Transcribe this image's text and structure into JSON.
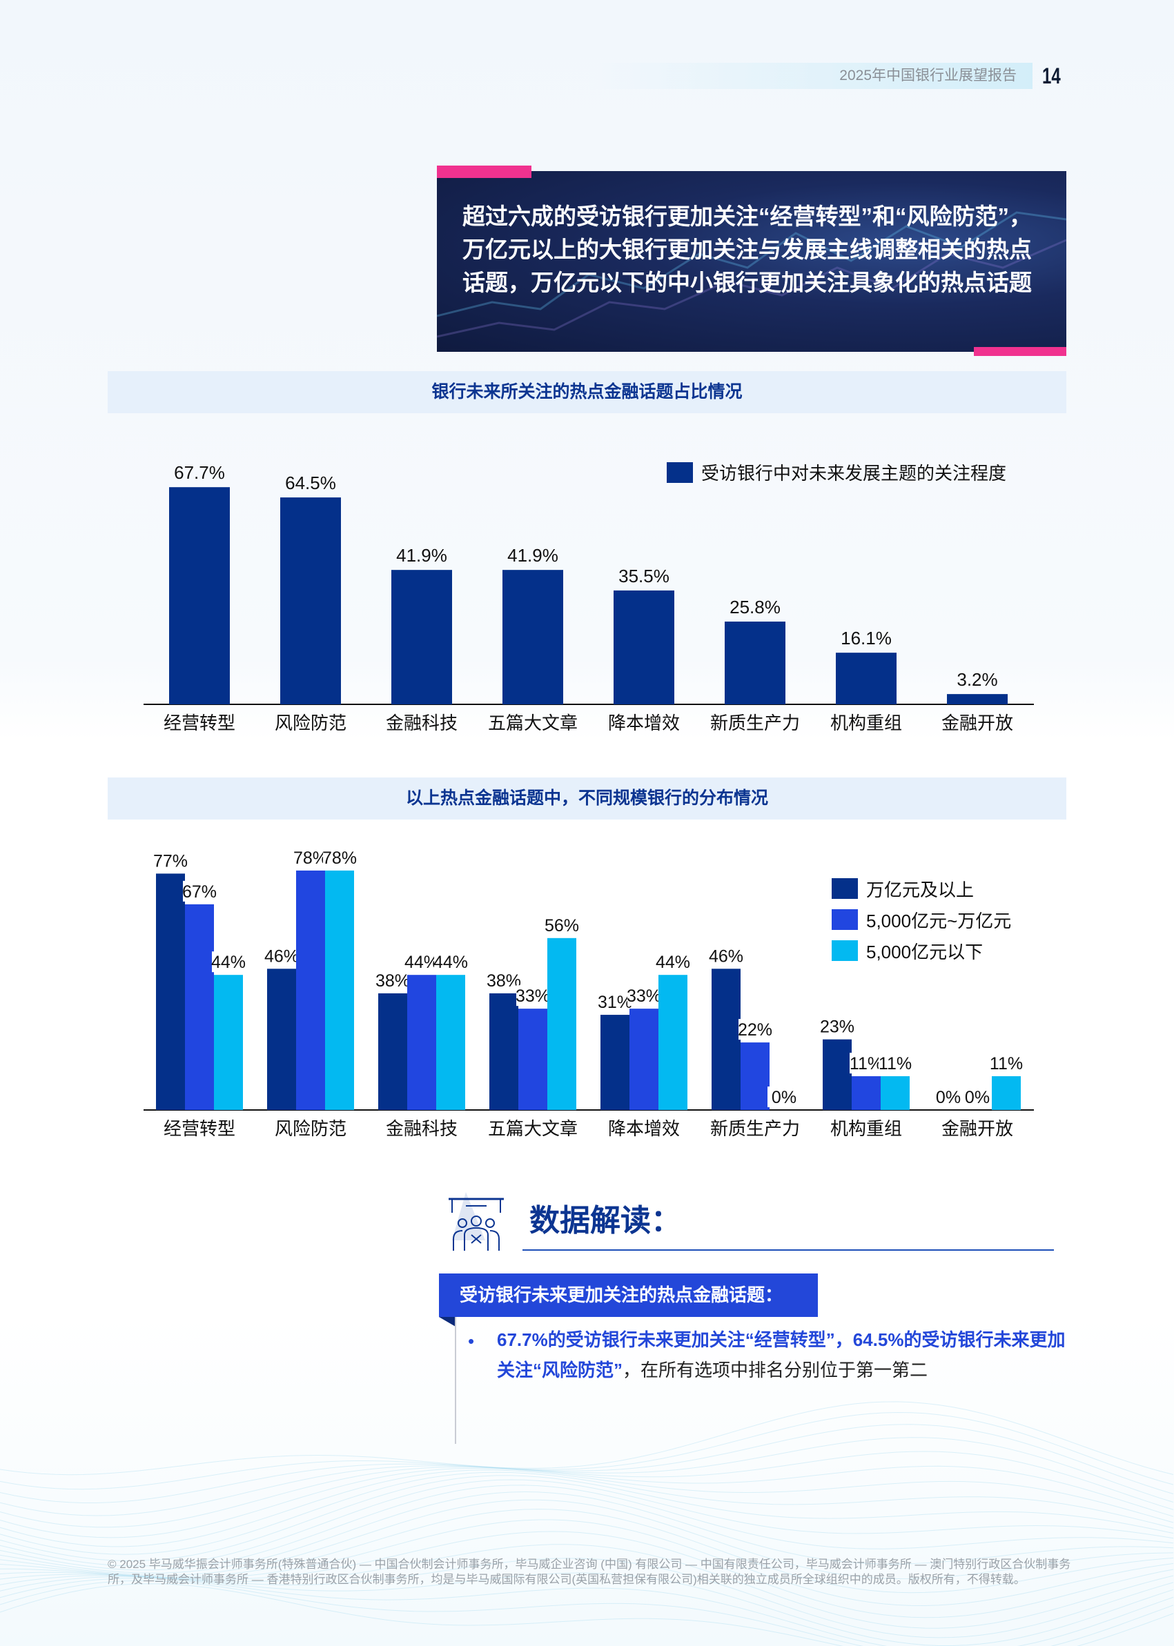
{
  "header": {
    "report_title": "2025年中国银行业展望报告",
    "page_number": "14"
  },
  "hero": {
    "headline": "超过六成的受访银行更加关注“经营转型”和“风险防范”，万亿元以上的大银行更加关注与发展主线调整相关的热点话题，万亿元以下的中小银行更加关注具象化的热点话题",
    "accent_color": "#f0328f"
  },
  "chart_data": [
    {
      "type": "bar",
      "title": "银行未来所关注的热点金融话题占比情况",
      "categories": [
        "经营转型",
        "风险防范",
        "金融科技",
        "五篇大文章",
        "降本增效",
        "新质生产力",
        "机构重组",
        "金融开放"
      ],
      "series": [
        {
          "name": "受访银行中对未来发展主题的关注程度",
          "values": [
            67.7,
            64.5,
            41.9,
            41.9,
            35.5,
            25.8,
            16.1,
            3.2
          ],
          "color": "#04308a"
        }
      ],
      "value_labels": [
        "67.7%",
        "64.5%",
        "41.9%",
        "41.9%",
        "35.5%",
        "25.8%",
        "16.1%",
        "3.2%"
      ],
      "unit": "%",
      "ylim": [
        0,
        70
      ],
      "grid": false,
      "legend": "top-right"
    },
    {
      "type": "bar",
      "title": "以上热点金融话题中，不同规模银行的分布情况",
      "categories": [
        "经营转型",
        "风险防范",
        "金融科技",
        "五篇大文章",
        "降本增效",
        "新质生产力",
        "机构重组",
        "金融开放"
      ],
      "series": [
        {
          "name": "万亿元及以上",
          "values": [
            77,
            46,
            38,
            38,
            31,
            46,
            23,
            0
          ],
          "color": "#04308a"
        },
        {
          "name": "5,000亿元~万亿元",
          "values": [
            67,
            78,
            44,
            33,
            33,
            22,
            11,
            0
          ],
          "color": "#2146e0"
        },
        {
          "name": "5,000亿元以下",
          "values": [
            44,
            78,
            44,
            56,
            44,
            0,
            11,
            11
          ],
          "color": "#03b9f1"
        }
      ],
      "unit": "%",
      "ylim": [
        0,
        80
      ],
      "grid": false,
      "legend": "right"
    }
  ],
  "interpretation": {
    "title": "数据解读：",
    "subtitle": "受访银行未来更加关注的热点金融话题：",
    "bullet_highlight": "67.7%的受访银行未来更加关注“经营转型”，64.5%的受访银行未来更加关注“风险防范”",
    "bullet_rest": "，在所有选项中排名分别位于第一第二"
  },
  "footer": {
    "copyright": "© 2025 毕马威华振会计师事务所(特殊普通合伙) — 中国合伙制会计师事务所，毕马威企业咨询 (中国) 有限公司 — 中国有限责任公司，毕马威会计师事务所 — 澳门特别行政区合伙制事务所，及毕马威会计师事务所 — 香港特别行政区合伙制事务所，均是与毕马威国际有限公司(英国私营担保有限公司)相关联的独立成员所全球组织中的成员。版权所有，不得转载。"
  }
}
